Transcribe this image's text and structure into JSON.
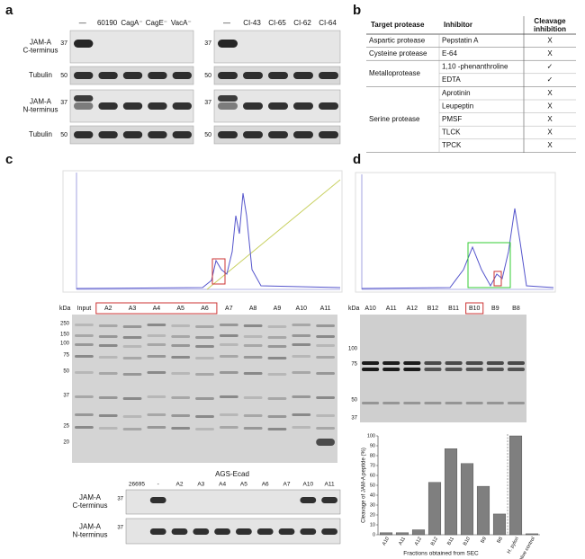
{
  "panel_labels": [
    "a",
    "b",
    "c",
    "d"
  ],
  "panel_a": {
    "row_labels": [
      [
        "JAM-A",
        "C-terminus"
      ],
      [
        "Tubulin"
      ],
      [
        "JAM-A",
        "N-terminus"
      ],
      [
        "Tubulin"
      ]
    ],
    "left": {
      "lanes": [
        "—",
        "60190",
        "CagA⁻",
        "CagE⁻",
        "VacA⁻"
      ],
      "markers": [
        "37",
        "50",
        "37",
        "50"
      ]
    },
    "right": {
      "lanes": [
        "—",
        "CI-43",
        "CI-65",
        "CI-62",
        "CI-64"
      ],
      "markers": [
        "37",
        "50",
        "37",
        "50"
      ]
    }
  },
  "panel_b": {
    "headers": [
      "Target protease",
      "Inhibitor",
      [
        "Cleavage",
        "inhibition"
      ]
    ],
    "groups": [
      {
        "target": "Aspartic protease",
        "inhibitors": [
          {
            "name": "Pepstatin A",
            "result": "X"
          }
        ]
      },
      {
        "target": "Cysteine protease",
        "inhibitors": [
          {
            "name": "E-64",
            "result": "X"
          }
        ]
      },
      {
        "target": "Metalloprotease",
        "inhibitors": [
          {
            "name": "1,10 -phenanthroline",
            "result": "✓"
          },
          {
            "name": "EDTA",
            "result": "✓"
          }
        ]
      },
      {
        "target": "Serine protease",
        "inhibitors": [
          {
            "name": "Aprotinin",
            "result": "X"
          },
          {
            "name": "Leupeptin",
            "result": "X"
          },
          {
            "name": "PMSF",
            "result": "X"
          },
          {
            "name": "TLCK",
            "result": "X"
          },
          {
            "name": "TPCK",
            "result": "X"
          }
        ]
      }
    ]
  },
  "panel_c": {
    "unit": "kDa",
    "markers": [
      "250",
      "150",
      "100",
      "75",
      "50",
      "37",
      "25",
      "20"
    ],
    "lanes": [
      "Input",
      "A2",
      "A3",
      "A4",
      "A5",
      "A6",
      "A7",
      "A8",
      "A9",
      "A10",
      "A11"
    ],
    "blot_title": "AGS-Ecad",
    "blot_lanes": [
      "26695",
      "-",
      "A2",
      "A3",
      "A4",
      "A5",
      "A6",
      "A7",
      "A10",
      "A11"
    ],
    "blot_rows": [
      [
        "JAM-A",
        "C-terminus"
      ],
      [
        "JAM-A",
        "N-terminus"
      ]
    ],
    "blot_markers": [
      "37",
      "37"
    ]
  },
  "panel_d": {
    "unit": "kDa",
    "markers": [
      "100",
      "75",
      "50",
      "37"
    ],
    "lanes": [
      "A10",
      "A11",
      "A12",
      "B12",
      "B11",
      "B10",
      "B9",
      "B8"
    ],
    "chart_data": {
      "type": "bar",
      "categories": [
        "A10",
        "A11",
        "A12",
        "B12",
        "B11",
        "B10",
        "B9",
        "B8",
        "H. pylori",
        "Negative control"
      ],
      "values": [
        2,
        2,
        5,
        53,
        87,
        72,
        49,
        21,
        100,
        1
      ],
      "color": "#7f7f7f",
      "ylim": [
        0,
        100
      ],
      "yticks": [
        0,
        10,
        20,
        30,
        40,
        50,
        60,
        70,
        80,
        90,
        100
      ],
      "y_label": "Cleavage of JAM-A peptide (%)",
      "x_label": "Fractions obtained from SEC"
    }
  }
}
